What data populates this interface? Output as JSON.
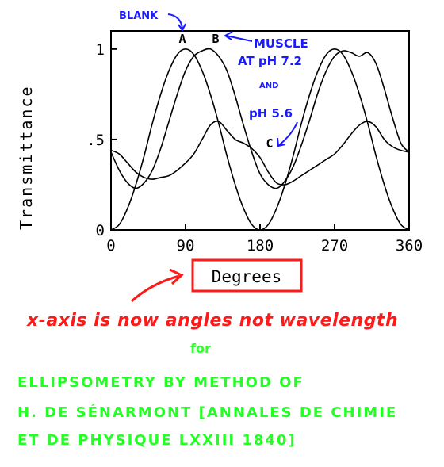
{
  "chart_data": {
    "type": "line",
    "xlabel": "Degrees",
    "ylabel": "Transmittance",
    "xlim": [
      0,
      360
    ],
    "ylim": [
      0,
      1.1
    ],
    "x_ticks": [
      0,
      90,
      180,
      270,
      360
    ],
    "x_tick_labels": [
      "0",
      "90",
      "180",
      "270",
      "360"
    ],
    "y_ticks": [
      0,
      0.5,
      1
    ],
    "y_tick_labels": [
      "0",
      ".5",
      "1"
    ],
    "grid": false,
    "series": [
      {
        "name": "A",
        "x": [
          0,
          10,
          20,
          30,
          40,
          50,
          60,
          70,
          80,
          90,
          100,
          110,
          120,
          130,
          140,
          150,
          160,
          170,
          180,
          190,
          200,
          210,
          220,
          230,
          240,
          250,
          260,
          270,
          280,
          290,
          300,
          310,
          320,
          330,
          340,
          350,
          360
        ],
        "values": [
          0.0,
          0.03,
          0.12,
          0.25,
          0.41,
          0.59,
          0.75,
          0.88,
          0.97,
          1.0,
          0.97,
          0.88,
          0.75,
          0.59,
          0.41,
          0.25,
          0.12,
          0.03,
          0.0,
          0.03,
          0.12,
          0.25,
          0.41,
          0.59,
          0.75,
          0.88,
          0.97,
          1.0,
          0.97,
          0.88,
          0.75,
          0.59,
          0.41,
          0.25,
          0.12,
          0.03,
          0.0
        ]
      },
      {
        "name": "B",
        "x": [
          0,
          10,
          20,
          30,
          40,
          50,
          60,
          70,
          80,
          90,
          100,
          110,
          120,
          130,
          140,
          150,
          160,
          170,
          180,
          190,
          200,
          210,
          220,
          230,
          240,
          250,
          260,
          270,
          280,
          290,
          300,
          310,
          320,
          330,
          340,
          350,
          360
        ],
        "values": [
          0.43,
          0.33,
          0.26,
          0.23,
          0.26,
          0.33,
          0.45,
          0.6,
          0.75,
          0.88,
          0.96,
          0.99,
          1.0,
          0.96,
          0.88,
          0.74,
          0.58,
          0.43,
          0.31,
          0.25,
          0.23,
          0.27,
          0.35,
          0.47,
          0.61,
          0.76,
          0.88,
          0.96,
          0.99,
          0.98,
          0.96,
          0.98,
          0.92,
          0.78,
          0.62,
          0.48,
          0.43
        ]
      },
      {
        "name": "C",
        "x": [
          0,
          10,
          20,
          30,
          40,
          50,
          60,
          70,
          80,
          90,
          100,
          110,
          120,
          130,
          140,
          150,
          160,
          170,
          180,
          190,
          200,
          210,
          220,
          230,
          240,
          250,
          260,
          270,
          280,
          290,
          300,
          310,
          320,
          330,
          340,
          350,
          360
        ],
        "values": [
          0.44,
          0.42,
          0.37,
          0.32,
          0.29,
          0.28,
          0.29,
          0.3,
          0.33,
          0.37,
          0.42,
          0.5,
          0.58,
          0.6,
          0.55,
          0.5,
          0.48,
          0.45,
          0.4,
          0.32,
          0.26,
          0.25,
          0.27,
          0.3,
          0.33,
          0.36,
          0.39,
          0.42,
          0.47,
          0.53,
          0.58,
          0.6,
          0.57,
          0.5,
          0.46,
          0.44,
          0.43
        ]
      }
    ],
    "annotations": [
      {
        "text": "BLANK",
        "color": "#1a1aff"
      },
      {
        "text": "MUSCLE",
        "color": "#1a1aff"
      },
      {
        "text": "AT pH 7.2",
        "color": "#1a1aff"
      },
      {
        "text": "AND",
        "color": "#1a1aff"
      },
      {
        "text": "pH 5.6",
        "color": "#1a1aff"
      }
    ]
  },
  "caption": {
    "red_text": "x-axis is now angles not wavelength",
    "red_color": "#ff1a1a",
    "for_text": "for",
    "green_line1": "ELLIPSOMETRY BY METHOD OF",
    "green_line2": "H. DE SÉNARMONT [ANNALES DE CHIMIE",
    "green_line3": "ET DE PHYSIQUE LXXIII 1840]",
    "green_color": "#22ff22"
  },
  "colors": {
    "curves": "#000000",
    "annotation_blue": "#1a1aff",
    "arrow_red": "#ff1a1a",
    "box_red": "#ff1a1a"
  }
}
